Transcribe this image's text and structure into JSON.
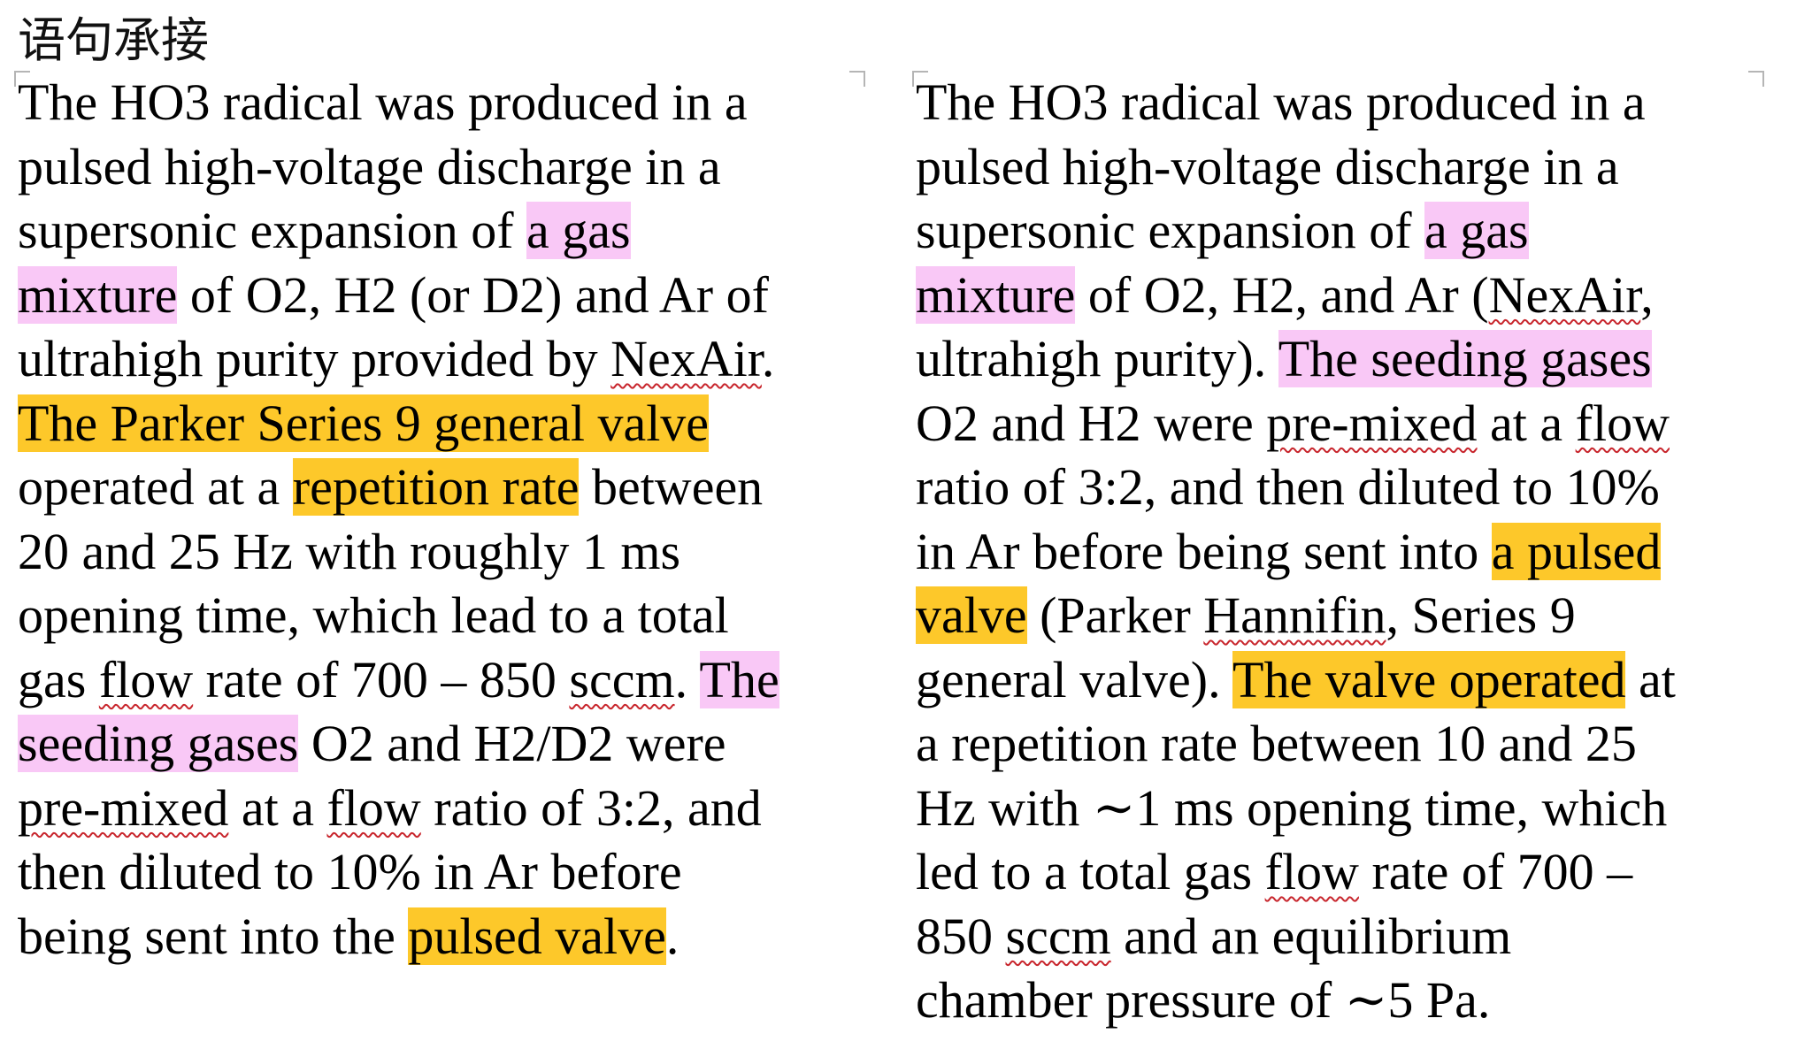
{
  "title": "语句承接",
  "left_paragraph": {
    "lines": [
      [
        {
          "t": "The HO3 radical was produced in a"
        }
      ],
      [
        {
          "t": "pulsed high-voltage discharge in a"
        }
      ],
      [
        {
          "t": "supersonic expansion of "
        },
        {
          "t": "a gas",
          "h": "pink"
        }
      ],
      [
        {
          "t": "mixture",
          "h": "pink"
        },
        {
          "t": " of O2, H2 (or D2) and Ar of"
        }
      ],
      [
        {
          "t": "ultrahigh purity provided by "
        },
        {
          "t": "NexAir",
          "u": true
        },
        {
          "t": "."
        }
      ],
      [
        {
          "t": "The Parker Series 9 general valve",
          "h": "yellow"
        }
      ],
      [
        {
          "t": "operated at a "
        },
        {
          "t": "repetition rate",
          "h": "yellow"
        },
        {
          "t": " between"
        }
      ],
      [
        {
          "t": "20 and 25 Hz with roughly 1 ms"
        }
      ],
      [
        {
          "t": "opening time, which lead to a total"
        }
      ],
      [
        {
          "t": "gas "
        },
        {
          "t": "flow",
          "u": true
        },
        {
          "t": " rate of 700 – 850 "
        },
        {
          "t": "sccm",
          "u": true
        },
        {
          "t": ". "
        },
        {
          "t": "The",
          "h": "pink"
        }
      ],
      [
        {
          "t": "seeding gases",
          "h": "pink"
        },
        {
          "t": " O2 and H2/D2 were"
        }
      ],
      [
        {
          "t": "pre-mixed",
          "u": true
        },
        {
          "t": " at a "
        },
        {
          "t": "flow",
          "u": true
        },
        {
          "t": " ratio of 3:2, and"
        }
      ],
      [
        {
          "t": "then diluted to 10% in Ar before"
        }
      ],
      [
        {
          "t": "being sent into the "
        },
        {
          "t": "pulsed valve",
          "h": "yellow"
        },
        {
          "t": "."
        }
      ]
    ]
  },
  "right_paragraph": {
    "lines": [
      [
        {
          "t": "The HO3 radical was produced in a"
        }
      ],
      [
        {
          "t": "pulsed high-voltage discharge in a"
        }
      ],
      [
        {
          "t": "supersonic expansion of "
        },
        {
          "t": "a gas",
          "h": "pink"
        }
      ],
      [
        {
          "t": "mixture",
          "h": "pink"
        },
        {
          "t": " of O2, H2, and Ar ("
        },
        {
          "t": "NexAir",
          "u": true
        },
        {
          "t": ","
        }
      ],
      [
        {
          "t": "ultrahigh purity). "
        },
        {
          "t": "The seeding gases",
          "h": "pink"
        }
      ],
      [
        {
          "t": "O2 and H2 were "
        },
        {
          "t": "pre-mixed",
          "u": true
        },
        {
          "t": " at a "
        },
        {
          "t": "flow",
          "u": true
        }
      ],
      [
        {
          "t": "ratio of 3:2, and then diluted to 10%"
        }
      ],
      [
        {
          "t": "in Ar before being sent into "
        },
        {
          "t": "a pulsed",
          "h": "yellow"
        }
      ],
      [
        {
          "t": "valve",
          "h": "yellow"
        },
        {
          "t": " (Parker "
        },
        {
          "t": "Hannifin",
          "u": true
        },
        {
          "t": ", Series 9"
        }
      ],
      [
        {
          "t": "general valve). "
        },
        {
          "t": "The valve operated",
          "h": "yellow"
        },
        {
          "t": " at"
        }
      ],
      [
        {
          "t": "a repetition rate between 10 and 25"
        }
      ],
      [
        {
          "t": "Hz with ∼1 ms opening time, which"
        }
      ],
      [
        {
          "t": "led to a total gas "
        },
        {
          "t": "flow",
          "u": true
        },
        {
          "t": " rate of 700 –"
        }
      ],
      [
        {
          "t": "850 "
        },
        {
          "t": "sccm",
          "u": true
        },
        {
          "t": " and an equilibrium"
        }
      ],
      [
        {
          "t": "chamber pressure of ∼5 Pa."
        }
      ]
    ]
  },
  "colors": {
    "highlight_pink": "#f9c8f6",
    "highlight_yellow": "#fdc82a",
    "spellcheck_underline": "#c8262d"
  }
}
